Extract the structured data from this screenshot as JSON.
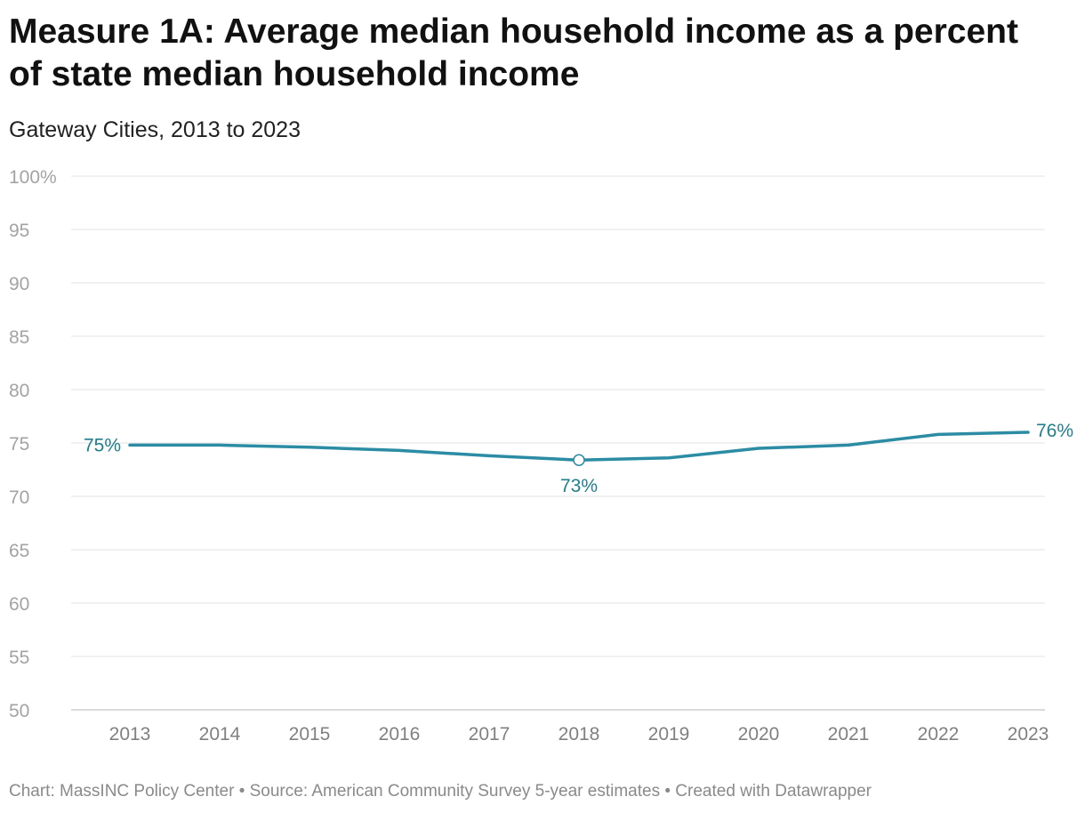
{
  "title": "Measure 1A: Average median household income as a percent of state median household income",
  "subtitle": "Gateway Cities, 2013 to 2023",
  "footer": {
    "chart_credit": "Chart: MassINC Policy Center",
    "source": "Source: American Community Survey 5-year estimates",
    "created_with": "Created with Datawrapper",
    "separator": "•"
  },
  "colors": {
    "line": "#2b8ca3",
    "label": "#1f7f8c",
    "grid": "#e3e3e3"
  },
  "chart_data": {
    "type": "line",
    "title": "Measure 1A: Average median household income as a percent of state median household income",
    "subtitle": "Gateway Cities, 2013 to 2023",
    "xlabel": "",
    "ylabel": "",
    "ylim": [
      50,
      100
    ],
    "yticks": [
      50,
      55,
      60,
      65,
      70,
      75,
      80,
      85,
      90,
      95,
      100
    ],
    "ytick_labels": [
      "50",
      "55",
      "60",
      "65",
      "70",
      "75",
      "80",
      "85",
      "90",
      "95",
      "100%"
    ],
    "grid": true,
    "categories": [
      "2013",
      "2014",
      "2015",
      "2016",
      "2017",
      "2018",
      "2019",
      "2020",
      "2021",
      "2022",
      "2023"
    ],
    "series": [
      {
        "name": "Gateway Cities",
        "values": [
          74.8,
          74.8,
          74.6,
          74.3,
          73.8,
          73.4,
          73.6,
          74.5,
          74.8,
          75.8,
          76.0
        ]
      }
    ],
    "annotations": [
      {
        "index": 0,
        "text": "75%",
        "position": "left"
      },
      {
        "index": 5,
        "text": "73%",
        "position": "below",
        "marker": "circle"
      },
      {
        "index": 10,
        "text": "76%",
        "position": "right"
      }
    ]
  }
}
